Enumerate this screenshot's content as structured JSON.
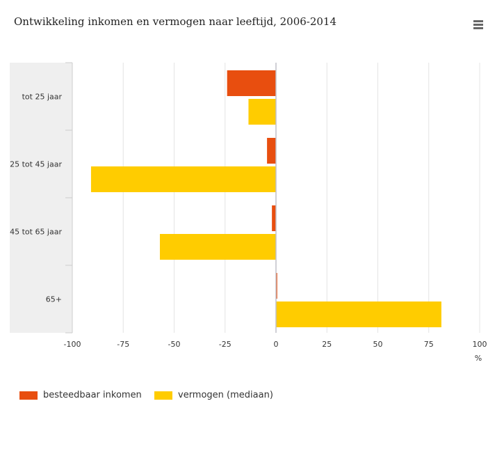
{
  "chart_data": {
    "type": "bar",
    "orientation": "horizontal",
    "title": "Ontwikkeling inkomen en vermogen naar leeftijd, 2006-2014",
    "categories": [
      "tot 25 jaar",
      "25 tot 45 jaar",
      "45 tot 65 jaar",
      "65+"
    ],
    "series": [
      {
        "name": "besteedbaar inkomen",
        "color": "#e84e0f",
        "values": [
          -24,
          -4.4,
          -2,
          0.6
        ]
      },
      {
        "name": "vermogen (mediaan)",
        "color": "#ffcc00",
        "values": [
          -13.5,
          -90.8,
          -57,
          81.2
        ]
      }
    ],
    "xlim": [
      -100,
      100
    ],
    "xticks": [
      "-100",
      "-75",
      "-50",
      "-25",
      "0",
      "25",
      "50",
      "75",
      "100"
    ],
    "xlabel": "%",
    "grid": true,
    "legend": "bottom-left"
  }
}
